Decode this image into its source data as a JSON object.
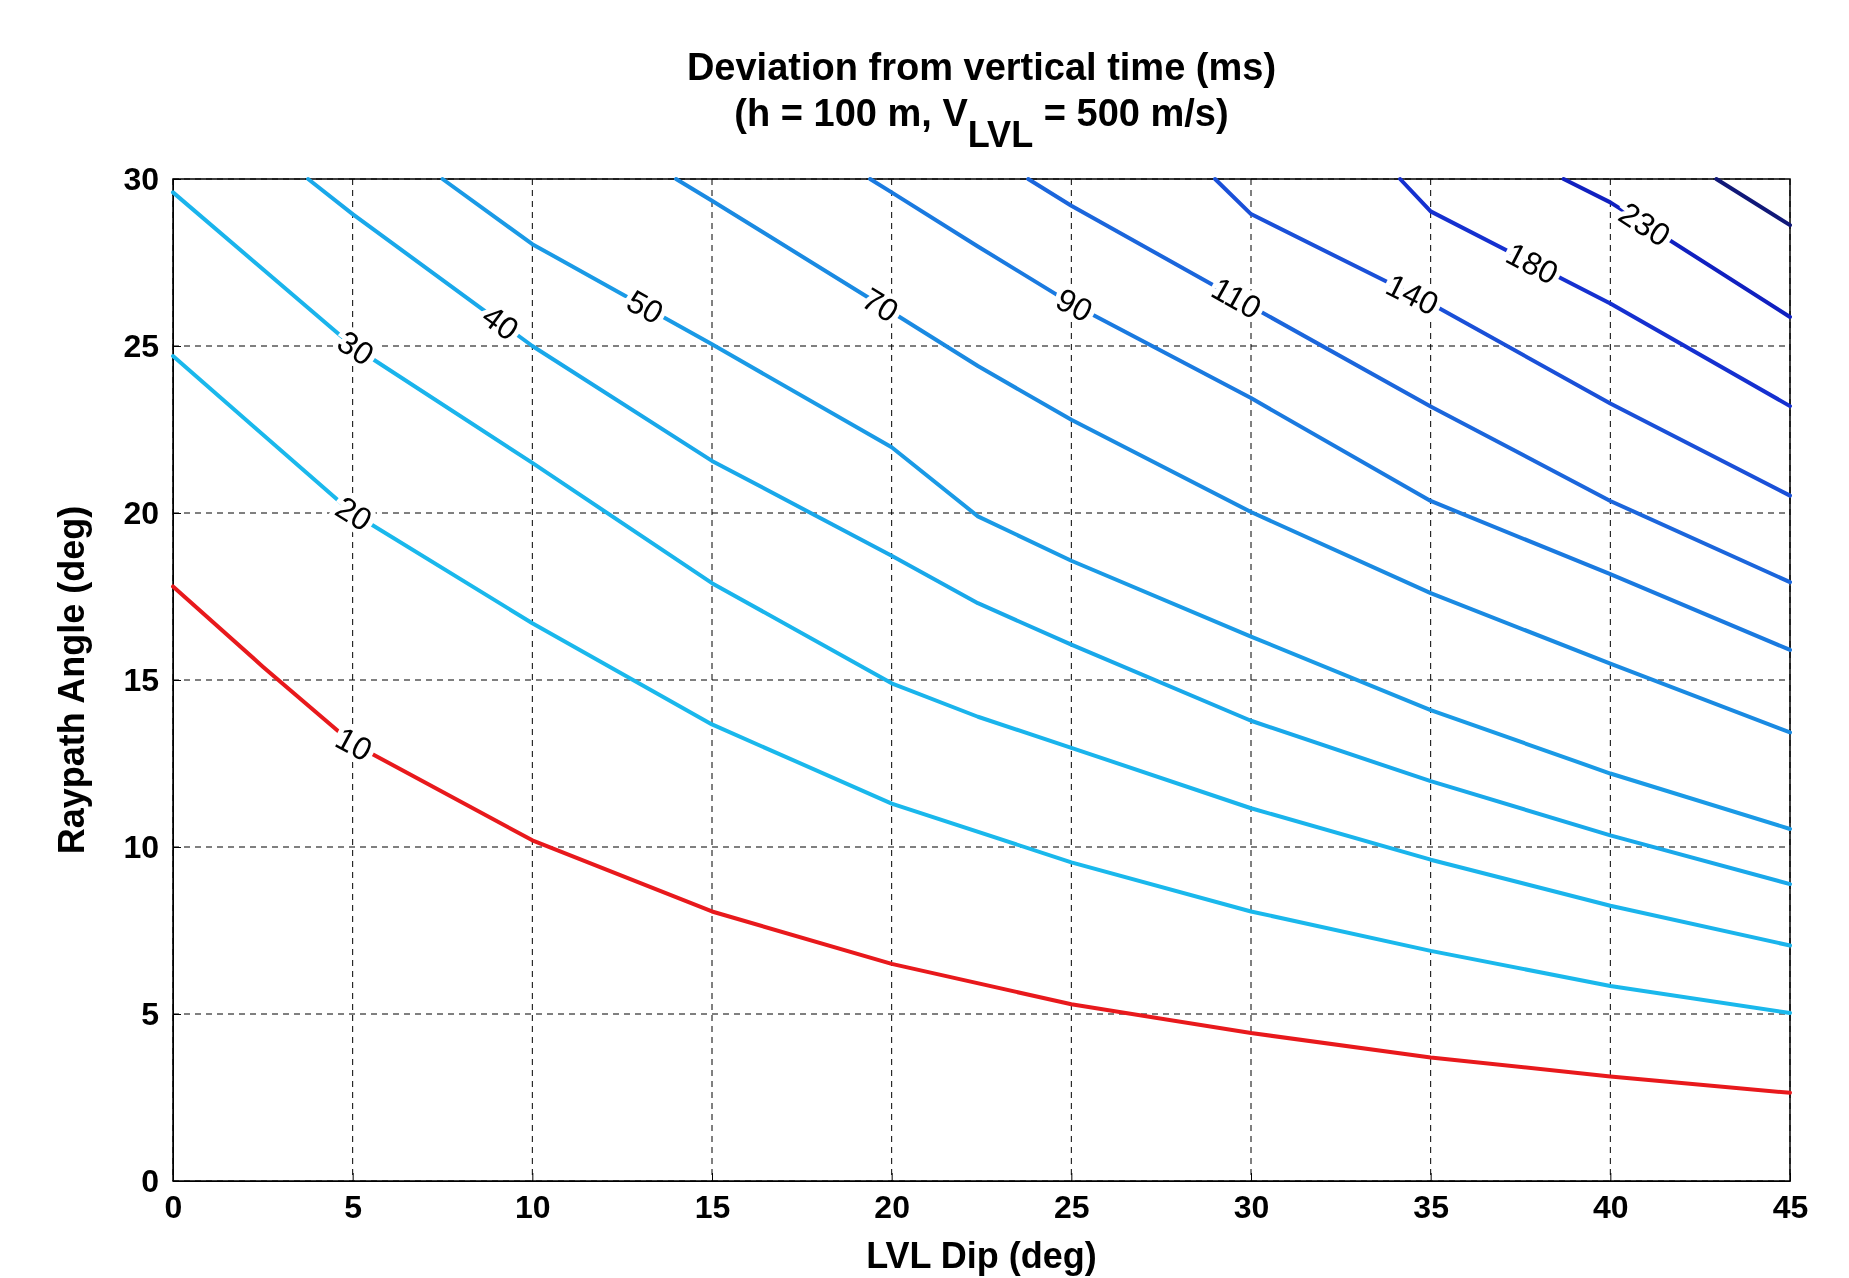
{
  "chart_data": {
    "type": "line",
    "title": "Deviation from vertical time (ms)",
    "subtitle": "(h = 100 m, V$_{LVL}$ = 500 m/s)",
    "xlabel": "LVL Dip (deg)",
    "ylabel": "Raypath Angle (deg)",
    "xlim": [
      0,
      45
    ],
    "ylim": [
      0,
      30
    ],
    "xticks": [
      0,
      5,
      10,
      15,
      20,
      25,
      30,
      35,
      40,
      45
    ],
    "yticks": [
      0,
      5,
      10,
      15,
      20,
      25,
      30
    ],
    "grid": true,
    "line_style": "solid",
    "series": [
      {
        "name": "10",
        "color": "#e8191c",
        "x": [
          0,
          2.5,
          5,
          10,
          15,
          20,
          25,
          30,
          35,
          40,
          45
        ],
        "values": [
          17.8,
          15.4,
          13.1,
          10.2,
          8.07,
          6.5,
          5.29,
          4.43,
          3.7,
          3.13,
          2.64
        ]
      },
      {
        "name": "20",
        "color": "#1ab8ec",
        "x": [
          0,
          5,
          10,
          15,
          20,
          25,
          30,
          35,
          40,
          45
        ],
        "values": [
          24.7,
          20,
          16.7,
          13.67,
          11.3,
          9.54,
          8.07,
          6.89,
          5.84,
          5.03
        ]
      },
      {
        "name": "30",
        "color": "#1ab4ec",
        "x": [
          0,
          5,
          10,
          15,
          20,
          22.4,
          25,
          30,
          35,
          40,
          45
        ],
        "values": [
          29.6,
          25,
          21.5,
          17.9,
          14.9,
          13.9,
          12.97,
          11.16,
          9.62,
          8.24,
          7.05
        ]
      },
      {
        "name": "40",
        "color": "#19a8ea",
        "x": [
          3.76,
          5,
          10,
          15,
          20,
          22.4,
          25,
          30,
          35,
          40,
          45
        ],
        "values": [
          30,
          28.95,
          25,
          21.56,
          18.72,
          17.3,
          16.06,
          13.78,
          11.97,
          10.35,
          8.89
        ]
      },
      {
        "name": "50",
        "color": "#1a9ae6",
        "x": [
          7.5,
          10,
          15,
          20,
          22.4,
          25,
          30,
          35,
          40,
          45
        ],
        "values": [
          30,
          28.05,
          25.05,
          21.97,
          19.9,
          18.57,
          16.3,
          14.1,
          12.2,
          10.54
        ]
      },
      {
        "name": "70",
        "color": "#1a8ae2",
        "x": [
          14,
          15,
          20,
          22.4,
          25,
          30,
          35,
          40,
          45
        ],
        "values": [
          30,
          29.35,
          26.02,
          24.4,
          22.79,
          20.03,
          17.6,
          15.49,
          13.43
        ]
      },
      {
        "name": "90",
        "color": "#1a7ae0",
        "x": [
          19.4,
          20,
          22.4,
          25,
          30,
          35,
          40,
          45
        ],
        "values": [
          30,
          29.6,
          27.98,
          26.27,
          23.44,
          20.36,
          18.17,
          15.9
        ]
      },
      {
        "name": "110",
        "color": "#1b66dc",
        "x": [
          23.8,
          25,
          30,
          35,
          40,
          45
        ],
        "values": [
          30,
          29.2,
          26.19,
          23.19,
          20.36,
          17.93
        ]
      },
      {
        "name": "140",
        "color": "#1a50d8",
        "x": [
          29,
          30,
          35,
          40,
          45
        ],
        "values": [
          30,
          28.95,
          26.27,
          23.28,
          20.52
        ]
      },
      {
        "name": "180",
        "color": "#1530d0",
        "x": [
          34.15,
          35,
          40,
          45
        ],
        "values": [
          30,
          29.03,
          26.27,
          23.2
        ]
      },
      {
        "name": "230",
        "color": "#1020c0",
        "x": [
          38.7,
          40,
          45
        ],
        "values": [
          30,
          29.3,
          25.87
        ]
      },
      {
        "color": "#101878",
        "x": [
          42.95,
          45
        ],
        "values": [
          30,
          28.62
        ]
      }
    ]
  }
}
